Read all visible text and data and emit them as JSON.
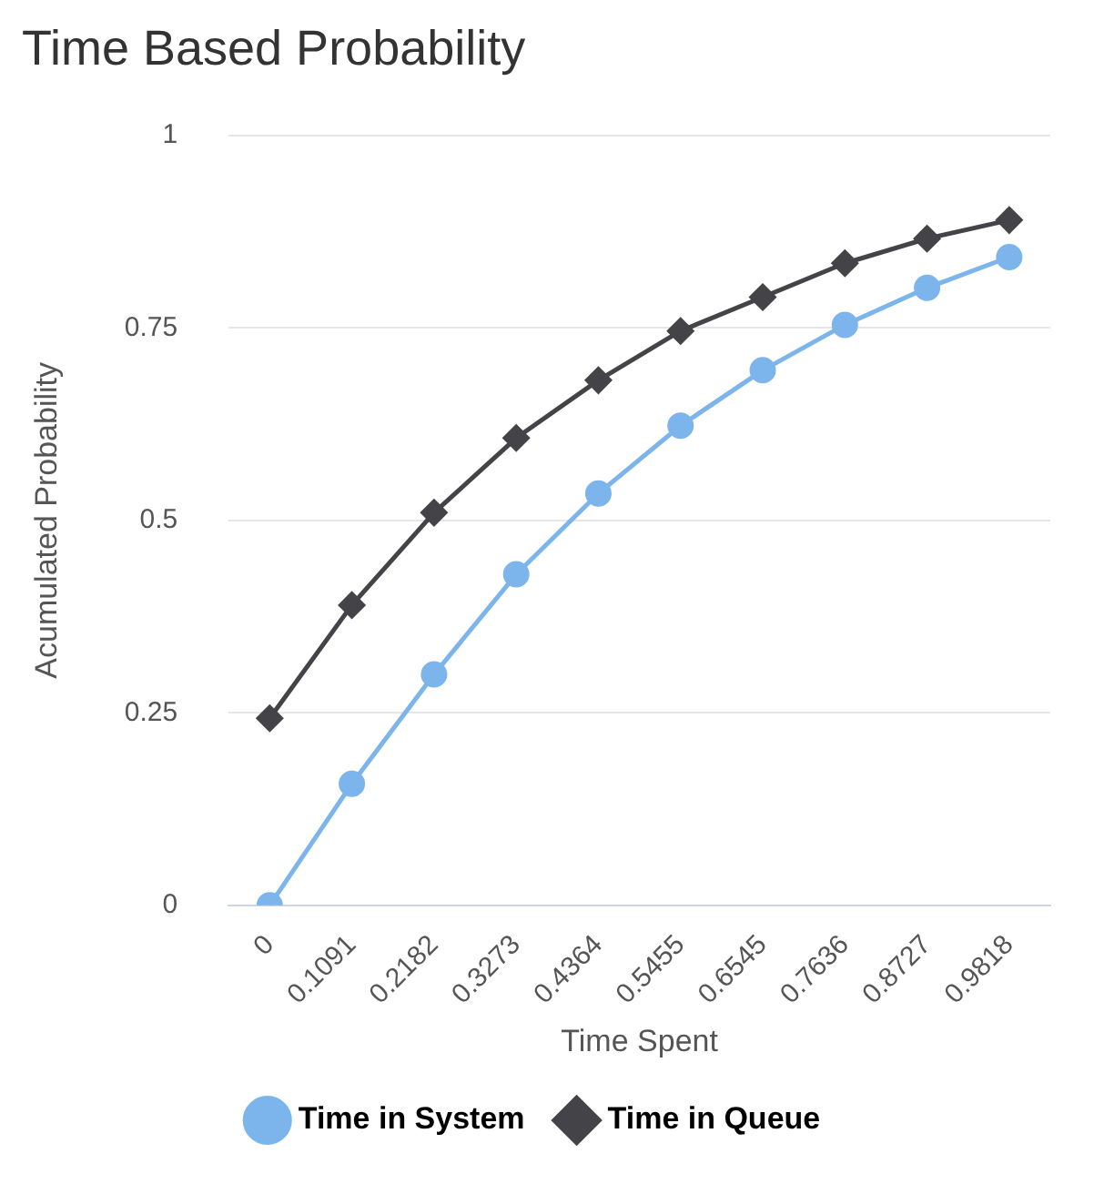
{
  "chart_data": {
    "type": "line",
    "title": "Time Based Probability",
    "xlabel": "Time Spent",
    "ylabel": "Acumulated Probability",
    "categories": [
      "0",
      "0.1091",
      "0.2182",
      "0.3273",
      "0.4364",
      "0.5455",
      "0.6545",
      "0.7636",
      "0.8727",
      "0.9818"
    ],
    "series": [
      {
        "name": "Time in System",
        "color": "#7cb5ec",
        "marker": "circle",
        "values": [
          0,
          0.158,
          0.3,
          0.43,
          0.535,
          0.623,
          0.695,
          0.754,
          0.802,
          0.842
        ]
      },
      {
        "name": "Time in Queue",
        "color": "#434348",
        "marker": "diamond",
        "values": [
          0.243,
          0.39,
          0.51,
          0.607,
          0.682,
          0.746,
          0.79,
          0.834,
          0.866,
          0.89
        ]
      }
    ],
    "ylim": [
      0,
      1
    ],
    "yticks": [
      0,
      0.25,
      0.5,
      0.75,
      1
    ],
    "grid": "y",
    "legend": "bottom",
    "line_style": "solid"
  }
}
